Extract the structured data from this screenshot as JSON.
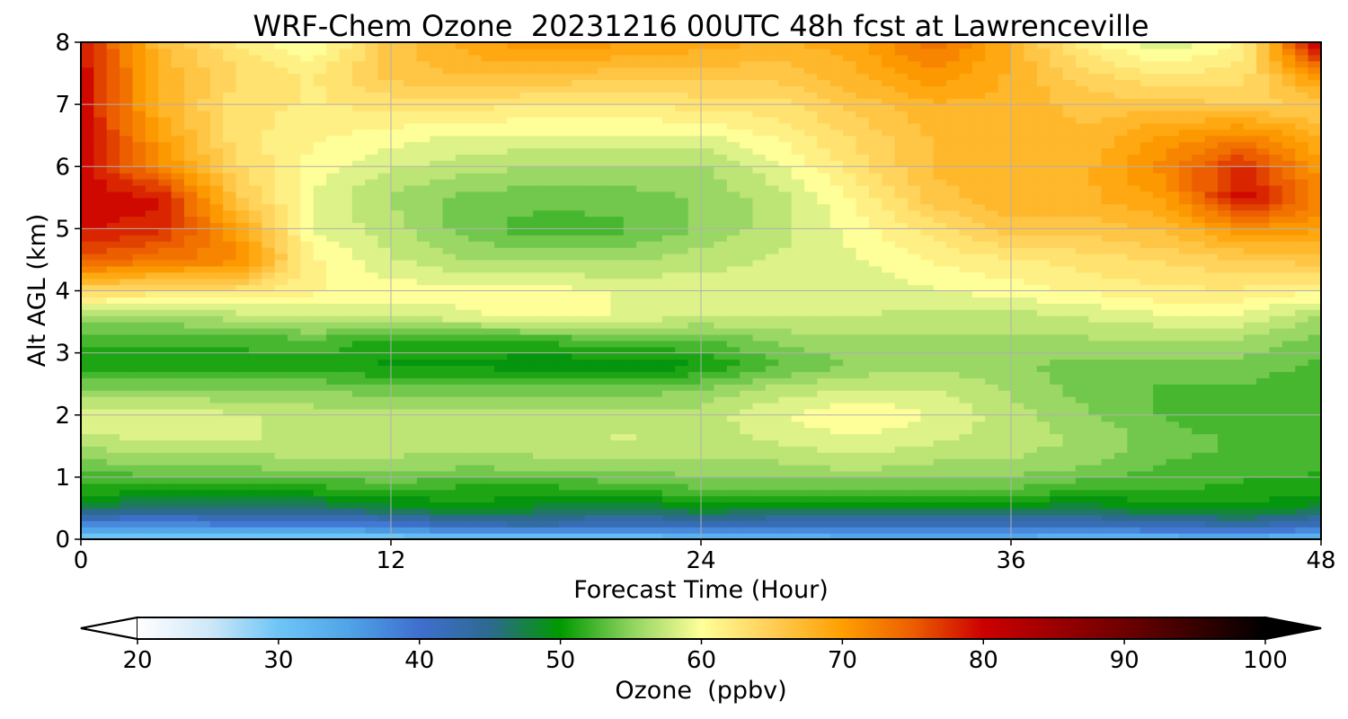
{
  "chart_data": {
    "type": "heatmap",
    "title": "WRF-Chem Ozone  20231216 00UTC 48h fcst at Lawrenceville",
    "xlabel": "Forecast Time (Hour)",
    "ylabel": "Alt AGL (km)",
    "xlim": [
      0,
      48
    ],
    "ylim": [
      0,
      8
    ],
    "x_ticks": [
      "0",
      "12",
      "24",
      "36",
      "48"
    ],
    "y_ticks": [
      "0",
      "1",
      "2",
      "3",
      "4",
      "5",
      "6",
      "7",
      "8"
    ],
    "grid": true,
    "x": [
      0,
      3,
      6,
      9,
      12,
      15,
      18,
      21,
      24,
      27,
      30,
      33,
      36,
      39,
      42,
      45,
      48
    ],
    "y": [
      0,
      0.2,
      0.5,
      0.8,
      1.2,
      1.6,
      2.0,
      2.4,
      2.8,
      3.2,
      3.6,
      4.0,
      4.5,
      5.0,
      5.5,
      6.0,
      6.5,
      7.0,
      7.5,
      8.0
    ],
    "z": [
      [
        28,
        27,
        28,
        28,
        28,
        29,
        27,
        29,
        30,
        31,
        32,
        32,
        32,
        31,
        31,
        32,
        30
      ],
      [
        36,
        36,
        37,
        37,
        38,
        41,
        42,
        40,
        41,
        40,
        40,
        40,
        40,
        40,
        41,
        42,
        40
      ],
      [
        47,
        46,
        46,
        46,
        48,
        50,
        48,
        47,
        49,
        48,
        48,
        48,
        48,
        48,
        49,
        50,
        48
      ],
      [
        51,
        51,
        51,
        51,
        52,
        51,
        51,
        52,
        53,
        53,
        53,
        53,
        53,
        52,
        52,
        51,
        51
      ],
      [
        54,
        55,
        55,
        56,
        56,
        55,
        56,
        56,
        56,
        56,
        57,
        56,
        56,
        55,
        53,
        53,
        52
      ],
      [
        57,
        58,
        58,
        57,
        57,
        57,
        57,
        58,
        57,
        58,
        59,
        58,
        57,
        56,
        54,
        53,
        52
      ],
      [
        59,
        59,
        58,
        57,
        57,
        57,
        57,
        57,
        57,
        59,
        61,
        59,
        57,
        55,
        53,
        52,
        52
      ],
      [
        55,
        55,
        55,
        55,
        54,
        54,
        54,
        54,
        55,
        57,
        58,
        58,
        56,
        54,
        53,
        53,
        52
      ],
      [
        51,
        51,
        51,
        51,
        50,
        50,
        49,
        49,
        50,
        53,
        55,
        56,
        55,
        54,
        54,
        54,
        53
      ],
      [
        52,
        52,
        52,
        53,
        51,
        51,
        52,
        53,
        53,
        55,
        56,
        56,
        56,
        56,
        56,
        56,
        54
      ],
      [
        56,
        56,
        57,
        58,
        58,
        59,
        60,
        59,
        58,
        58,
        58,
        57,
        57,
        58,
        59,
        59,
        56
      ],
      [
        64,
        63,
        63,
        61,
        60,
        60,
        60,
        59,
        59,
        58,
        58,
        59,
        60,
        61,
        62,
        62,
        61
      ],
      [
        75,
        73,
        72,
        61,
        58,
        56,
        56,
        56,
        57,
        58,
        59,
        61,
        62,
        63,
        64,
        65,
        66
      ],
      [
        79,
        78,
        70,
        59,
        57,
        54,
        52,
        53,
        55,
        57,
        60,
        63,
        66,
        66,
        67,
        71,
        70
      ],
      [
        80,
        79,
        66,
        59,
        56,
        54,
        54,
        54,
        55,
        57,
        61,
        66,
        68,
        68,
        70,
        80,
        72
      ],
      [
        80,
        72,
        64,
        60,
        58,
        57,
        56,
        56,
        56,
        59,
        63,
        67,
        68,
        68,
        72,
        78,
        70
      ],
      [
        80,
        70,
        63,
        61,
        60,
        59,
        59,
        59,
        59,
        61,
        64,
        67,
        68,
        67,
        70,
        72,
        68
      ],
      [
        80,
        68,
        63,
        62,
        63,
        63,
        62,
        62,
        63,
        63,
        66,
        68,
        68,
        66,
        66,
        65,
        65
      ],
      [
        80,
        68,
        64,
        62,
        66,
        67,
        67,
        66,
        66,
        66,
        68,
        71,
        68,
        64,
        62,
        63,
        72
      ],
      [
        79,
        67,
        62,
        59,
        66,
        69,
        71,
        70,
        69,
        68,
        69,
        74,
        68,
        61,
        58,
        61,
        82
      ]
    ],
    "colorbar": {
      "label": "Ozone  (ppbv)",
      "range": [
        20,
        100
      ],
      "extend": "both",
      "ticks": [
        "20",
        "30",
        "40",
        "50",
        "60",
        "70",
        "80",
        "90",
        "100"
      ],
      "stops": [
        [
          20,
          "#ffffff"
        ],
        [
          25,
          "#d0e8f8"
        ],
        [
          30,
          "#6ec5f5"
        ],
        [
          35,
          "#4fa3e8"
        ],
        [
          40,
          "#3f6fcf"
        ],
        [
          45,
          "#2d6a8f"
        ],
        [
          50,
          "#009a00"
        ],
        [
          55,
          "#8fd35f"
        ],
        [
          60,
          "#ffff99"
        ],
        [
          65,
          "#ffce55"
        ],
        [
          70,
          "#ff9f00"
        ],
        [
          75,
          "#ec5e00"
        ],
        [
          80,
          "#cc0000"
        ],
        [
          90,
          "#6e0000"
        ],
        [
          100,
          "#000000"
        ]
      ]
    }
  }
}
